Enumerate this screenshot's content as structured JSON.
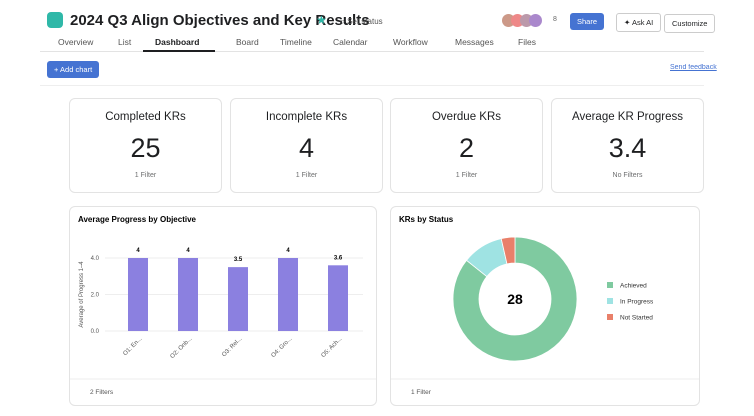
{
  "header": {
    "title": "2024 Q3 Align Objectives and Key Results",
    "set_status": "Set status",
    "member_count": "8",
    "share": "Share",
    "ask_ai": "Ask AI",
    "customize": "Customize"
  },
  "tabs": [
    "Overview",
    "List",
    "Dashboard",
    "Board",
    "Timeline",
    "Calendar",
    "Workflow",
    "Messages",
    "Files"
  ],
  "toolbar": {
    "add_chart": "+ Add chart",
    "send_feedback": "Send feedback"
  },
  "cards": [
    {
      "title": "Completed KRs",
      "value": "25",
      "filter": "1 Filter"
    },
    {
      "title": "Incomplete KRs",
      "value": "4",
      "filter": "1 Filter"
    },
    {
      "title": "Overdue KRs",
      "value": "2",
      "filter": "1 Filter"
    },
    {
      "title": "Average KR Progress",
      "value": "3.4",
      "filter": "No Filters"
    }
  ],
  "chart_data": [
    {
      "type": "bar",
      "title": "Average Progress by Objective",
      "y_label": "Average of Progress 1–4",
      "categories": [
        "O1: En...",
        "O2: Onb...",
        "O3: Rel...",
        "O4: Gro...",
        "O5: Ach..."
      ],
      "values": [
        4,
        4,
        3.5,
        4,
        3.6
      ],
      "color": "#8b80e0",
      "ylim": [
        0,
        4
      ],
      "yticks": [
        {
          "value": 0,
          "label": "0.0"
        },
        {
          "value": 2,
          "label": "2.0"
        },
        {
          "value": 4,
          "label": "4.0"
        }
      ],
      "filter": "2 Filters"
    },
    {
      "type": "pie",
      "title": "KRs by Status",
      "total": "28",
      "categories": [
        "Achieved",
        "In Progress",
        "Not Started"
      ],
      "values": [
        24,
        3,
        1
      ],
      "colors": [
        "#7fcaa0",
        "#9fe3e3",
        "#e9806a"
      ],
      "legend": "right",
      "filter": "1 Filter"
    }
  ]
}
